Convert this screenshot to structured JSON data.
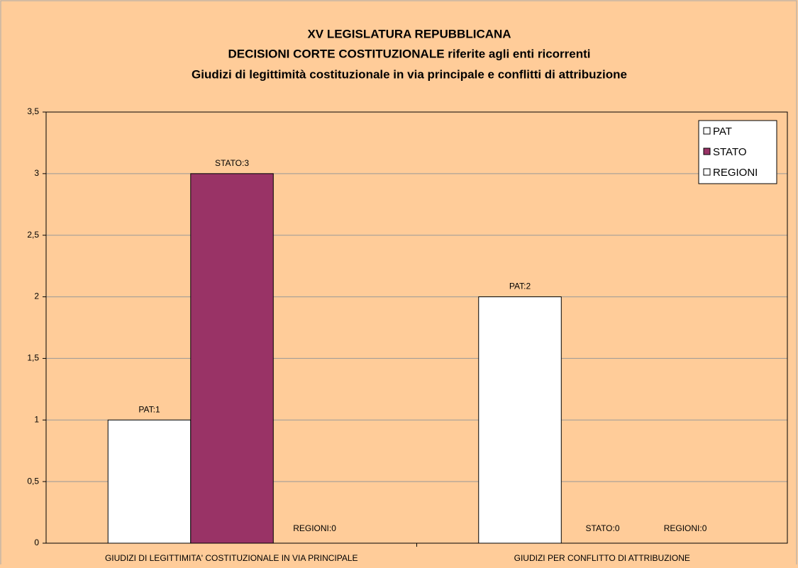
{
  "chart_data": {
    "type": "bar",
    "title": [
      "XV LEGISLATURA REPUBBLICANA",
      "DECISIONI CORTE COSTITUZIONALE riferite agli enti ricorrenti",
      "Giudizi di legittimità costituzionale in via principale e conflitti di attribuzione"
    ],
    "categories": [
      "GIUDIZI DI LEGITTIMITA' COSTITUZIONALE IN VIA PRINCIPALE",
      "GIUDIZI PER CONFLITTO DI ATTRIBUZIONE"
    ],
    "series": [
      {
        "name": "PAT",
        "color": "#ffffff",
        "values": [
          1,
          2
        ],
        "value_labels": [
          "PAT:1",
          "PAT:2"
        ]
      },
      {
        "name": "STATO",
        "color": "#993366",
        "values": [
          3,
          0
        ],
        "value_labels": [
          "STATO:3",
          "STATO:0"
        ]
      },
      {
        "name": "REGIONI",
        "color": "#ffffff",
        "values": [
          0,
          0
        ],
        "value_labels": [
          "REGIONI:0",
          "REGIONI:0"
        ]
      }
    ],
    "ylim": [
      0,
      3.5
    ],
    "yticks": [
      0,
      {
        "value": 0.5,
        "label": "0,5"
      },
      1,
      {
        "value": 1.5,
        "label": "1,5"
      },
      2,
      {
        "value": 2.5,
        "label": "2,5"
      },
      3,
      {
        "value": 3.5,
        "label": "3,5"
      }
    ],
    "grid": true,
    "legend": "top-right"
  }
}
